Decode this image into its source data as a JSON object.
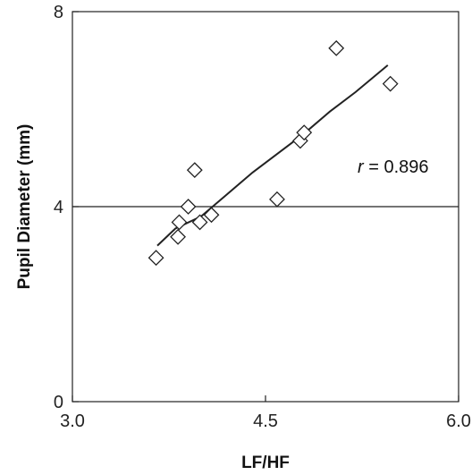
{
  "chart_data": {
    "type": "scatter",
    "xlabel": "LF/HF",
    "ylabel": "Pupil Diameter (mm)",
    "xlim": [
      3.0,
      6.0
    ],
    "ylim": [
      0,
      8
    ],
    "x_ticks": [
      "3.0",
      "4.5",
      "6.0"
    ],
    "y_ticks": [
      "0",
      "4",
      "8"
    ],
    "grid": false,
    "reference_line_y": 4,
    "series": [
      {
        "marker": "diamond",
        "points": [
          {
            "x": 3.65,
            "y": 2.95
          },
          {
            "x": 3.82,
            "y": 3.38
          },
          {
            "x": 3.83,
            "y": 3.68
          },
          {
            "x": 3.9,
            "y": 4.0
          },
          {
            "x": 3.95,
            "y": 4.75
          },
          {
            "x": 3.99,
            "y": 3.68
          },
          {
            "x": 4.08,
            "y": 3.83
          },
          {
            "x": 4.59,
            "y": 4.15
          },
          {
            "x": 4.77,
            "y": 5.35
          },
          {
            "x": 4.8,
            "y": 5.52
          },
          {
            "x": 5.05,
            "y": 7.25
          },
          {
            "x": 5.47,
            "y": 6.52
          }
        ]
      }
    ],
    "fit_line": [
      {
        "x": 3.66,
        "y": 3.2
      },
      {
        "x": 3.8,
        "y": 3.55
      },
      {
        "x": 4.0,
        "y": 3.8
      },
      {
        "x": 4.2,
        "y": 4.25
      },
      {
        "x": 4.4,
        "y": 4.7
      },
      {
        "x": 4.6,
        "y": 5.1
      },
      {
        "x": 4.8,
        "y": 5.5
      },
      {
        "x": 5.0,
        "y": 5.95
      },
      {
        "x": 5.2,
        "y": 6.35
      },
      {
        "x": 5.45,
        "y": 6.9
      }
    ],
    "annotation": {
      "italic": "r",
      "text": " = 0.896"
    }
  }
}
